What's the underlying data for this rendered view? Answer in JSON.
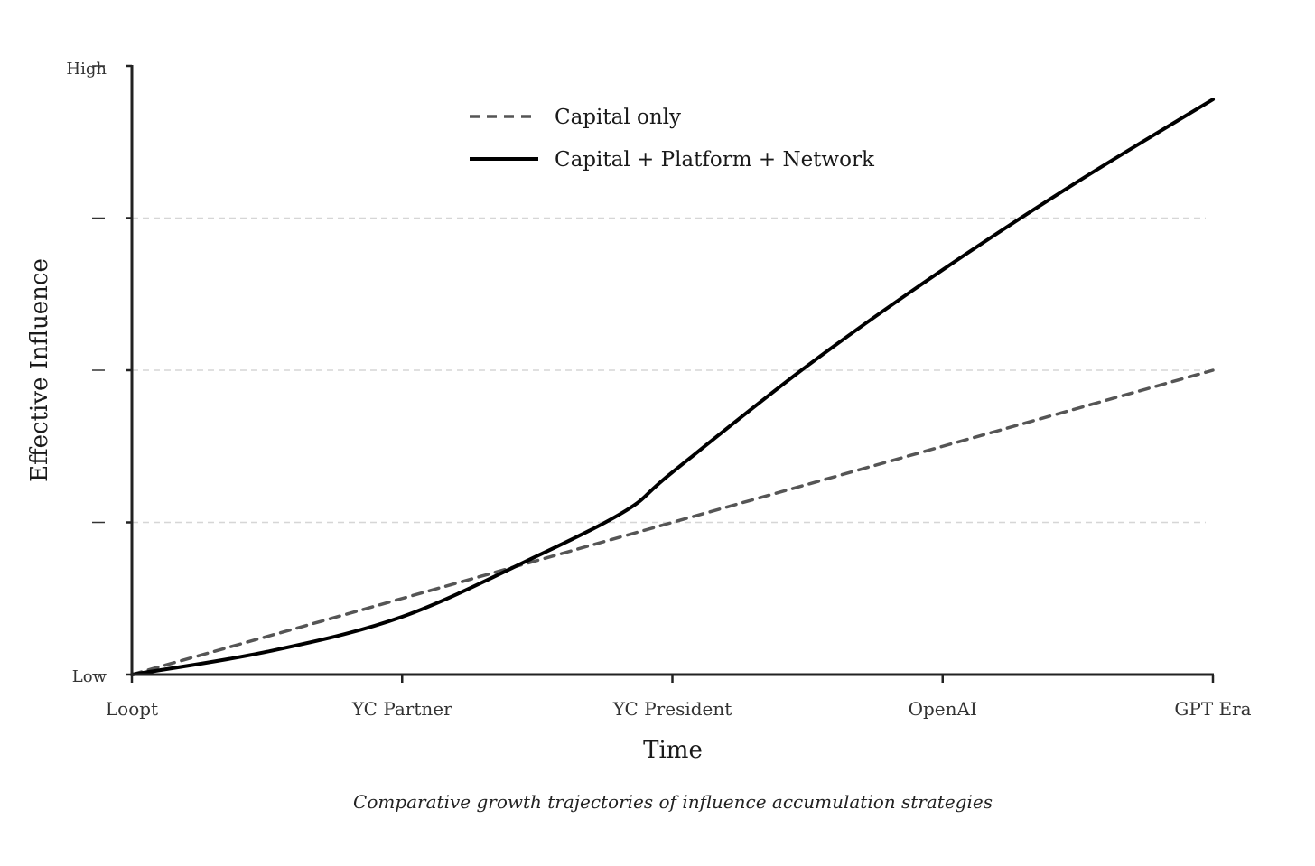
{
  "chart_data": {
    "type": "line",
    "categories": [
      "Loopt",
      "YC Partner",
      "YC President",
      "OpenAI",
      "GPT Era"
    ],
    "x": [
      0,
      1,
      2,
      3,
      4
    ],
    "ylim": [
      0,
      4
    ],
    "y_ticks": [
      0,
      1,
      2,
      3,
      4
    ],
    "y_end_labels": {
      "low": "Low",
      "high": "High"
    },
    "grid": "horizontal dashed",
    "legend": "top-center",
    "xlabel": "Time",
    "ylabel": "Effective Influence",
    "caption": "Comparative growth trajectories of influence accumulation strategies",
    "series": [
      {
        "name": "Capital only",
        "style": "dashed",
        "color": "#555555",
        "x": [
          0,
          1,
          2,
          3,
          4
        ],
        "values": [
          0,
          0.5,
          1.0,
          1.5,
          2.0
        ]
      },
      {
        "name": "Capital + Platform + Network",
        "style": "solid",
        "color": "#000000",
        "x": [
          0,
          0.5,
          1,
          1.5,
          1.83,
          2,
          2.5,
          3,
          3.5,
          4
        ],
        "values": [
          0,
          0.15,
          0.38,
          0.78,
          1.08,
          1.33,
          2.03,
          2.66,
          3.24,
          3.78
        ]
      }
    ]
  }
}
